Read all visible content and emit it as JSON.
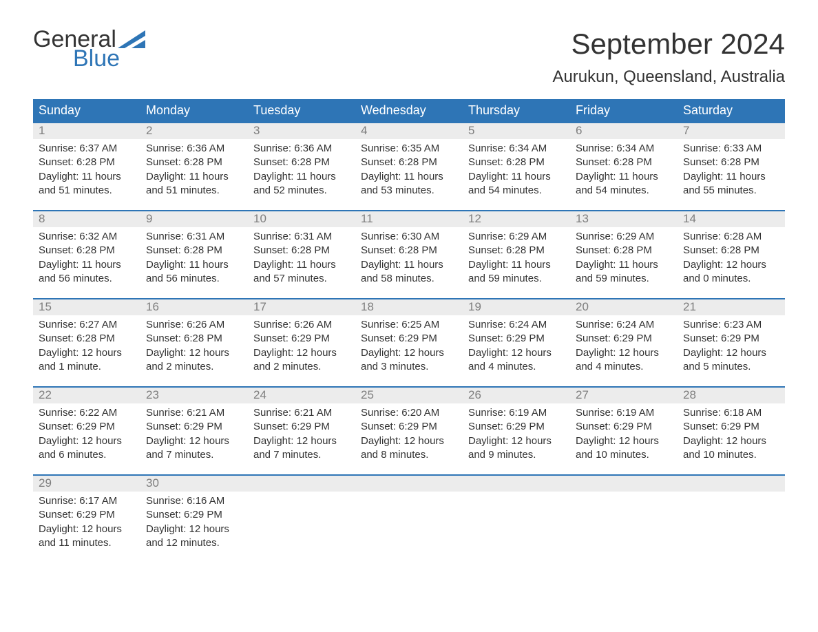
{
  "brand": {
    "part1": "General",
    "part2": "Blue",
    "text_color": "#333333",
    "accent_color": "#2e75b6"
  },
  "title": "September 2024",
  "location": "Aurukun, Queensland, Australia",
  "colors": {
    "header_bg": "#2e75b6",
    "header_text": "#ffffff",
    "daynum_bg": "#ececec",
    "daynum_text": "#7e7e7e",
    "body_text": "#333333",
    "week_border": "#2e75b6",
    "page_bg": "#ffffff"
  },
  "typography": {
    "month_title_fontsize": 42,
    "location_fontsize": 24,
    "day_header_fontsize": 18,
    "daynum_fontsize": 17,
    "detail_fontsize": 15
  },
  "day_headers": [
    "Sunday",
    "Monday",
    "Tuesday",
    "Wednesday",
    "Thursday",
    "Friday",
    "Saturday"
  ],
  "weeks": [
    [
      {
        "n": "1",
        "sr": "Sunrise: 6:37 AM",
        "ss": "Sunset: 6:28 PM",
        "d1": "Daylight: 11 hours",
        "d2": "and 51 minutes."
      },
      {
        "n": "2",
        "sr": "Sunrise: 6:36 AM",
        "ss": "Sunset: 6:28 PM",
        "d1": "Daylight: 11 hours",
        "d2": "and 51 minutes."
      },
      {
        "n": "3",
        "sr": "Sunrise: 6:36 AM",
        "ss": "Sunset: 6:28 PM",
        "d1": "Daylight: 11 hours",
        "d2": "and 52 minutes."
      },
      {
        "n": "4",
        "sr": "Sunrise: 6:35 AM",
        "ss": "Sunset: 6:28 PM",
        "d1": "Daylight: 11 hours",
        "d2": "and 53 minutes."
      },
      {
        "n": "5",
        "sr": "Sunrise: 6:34 AM",
        "ss": "Sunset: 6:28 PM",
        "d1": "Daylight: 11 hours",
        "d2": "and 54 minutes."
      },
      {
        "n": "6",
        "sr": "Sunrise: 6:34 AM",
        "ss": "Sunset: 6:28 PM",
        "d1": "Daylight: 11 hours",
        "d2": "and 54 minutes."
      },
      {
        "n": "7",
        "sr": "Sunrise: 6:33 AM",
        "ss": "Sunset: 6:28 PM",
        "d1": "Daylight: 11 hours",
        "d2": "and 55 minutes."
      }
    ],
    [
      {
        "n": "8",
        "sr": "Sunrise: 6:32 AM",
        "ss": "Sunset: 6:28 PM",
        "d1": "Daylight: 11 hours",
        "d2": "and 56 minutes."
      },
      {
        "n": "9",
        "sr": "Sunrise: 6:31 AM",
        "ss": "Sunset: 6:28 PM",
        "d1": "Daylight: 11 hours",
        "d2": "and 56 minutes."
      },
      {
        "n": "10",
        "sr": "Sunrise: 6:31 AM",
        "ss": "Sunset: 6:28 PM",
        "d1": "Daylight: 11 hours",
        "d2": "and 57 minutes."
      },
      {
        "n": "11",
        "sr": "Sunrise: 6:30 AM",
        "ss": "Sunset: 6:28 PM",
        "d1": "Daylight: 11 hours",
        "d2": "and 58 minutes."
      },
      {
        "n": "12",
        "sr": "Sunrise: 6:29 AM",
        "ss": "Sunset: 6:28 PM",
        "d1": "Daylight: 11 hours",
        "d2": "and 59 minutes."
      },
      {
        "n": "13",
        "sr": "Sunrise: 6:29 AM",
        "ss": "Sunset: 6:28 PM",
        "d1": "Daylight: 11 hours",
        "d2": "and 59 minutes."
      },
      {
        "n": "14",
        "sr": "Sunrise: 6:28 AM",
        "ss": "Sunset: 6:28 PM",
        "d1": "Daylight: 12 hours",
        "d2": "and 0 minutes."
      }
    ],
    [
      {
        "n": "15",
        "sr": "Sunrise: 6:27 AM",
        "ss": "Sunset: 6:28 PM",
        "d1": "Daylight: 12 hours",
        "d2": "and 1 minute."
      },
      {
        "n": "16",
        "sr": "Sunrise: 6:26 AM",
        "ss": "Sunset: 6:28 PM",
        "d1": "Daylight: 12 hours",
        "d2": "and 2 minutes."
      },
      {
        "n": "17",
        "sr": "Sunrise: 6:26 AM",
        "ss": "Sunset: 6:29 PM",
        "d1": "Daylight: 12 hours",
        "d2": "and 2 minutes."
      },
      {
        "n": "18",
        "sr": "Sunrise: 6:25 AM",
        "ss": "Sunset: 6:29 PM",
        "d1": "Daylight: 12 hours",
        "d2": "and 3 minutes."
      },
      {
        "n": "19",
        "sr": "Sunrise: 6:24 AM",
        "ss": "Sunset: 6:29 PM",
        "d1": "Daylight: 12 hours",
        "d2": "and 4 minutes."
      },
      {
        "n": "20",
        "sr": "Sunrise: 6:24 AM",
        "ss": "Sunset: 6:29 PM",
        "d1": "Daylight: 12 hours",
        "d2": "and 4 minutes."
      },
      {
        "n": "21",
        "sr": "Sunrise: 6:23 AM",
        "ss": "Sunset: 6:29 PM",
        "d1": "Daylight: 12 hours",
        "d2": "and 5 minutes."
      }
    ],
    [
      {
        "n": "22",
        "sr": "Sunrise: 6:22 AM",
        "ss": "Sunset: 6:29 PM",
        "d1": "Daylight: 12 hours",
        "d2": "and 6 minutes."
      },
      {
        "n": "23",
        "sr": "Sunrise: 6:21 AM",
        "ss": "Sunset: 6:29 PM",
        "d1": "Daylight: 12 hours",
        "d2": "and 7 minutes."
      },
      {
        "n": "24",
        "sr": "Sunrise: 6:21 AM",
        "ss": "Sunset: 6:29 PM",
        "d1": "Daylight: 12 hours",
        "d2": "and 7 minutes."
      },
      {
        "n": "25",
        "sr": "Sunrise: 6:20 AM",
        "ss": "Sunset: 6:29 PM",
        "d1": "Daylight: 12 hours",
        "d2": "and 8 minutes."
      },
      {
        "n": "26",
        "sr": "Sunrise: 6:19 AM",
        "ss": "Sunset: 6:29 PM",
        "d1": "Daylight: 12 hours",
        "d2": "and 9 minutes."
      },
      {
        "n": "27",
        "sr": "Sunrise: 6:19 AM",
        "ss": "Sunset: 6:29 PM",
        "d1": "Daylight: 12 hours",
        "d2": "and 10 minutes."
      },
      {
        "n": "28",
        "sr": "Sunrise: 6:18 AM",
        "ss": "Sunset: 6:29 PM",
        "d1": "Daylight: 12 hours",
        "d2": "and 10 minutes."
      }
    ],
    [
      {
        "n": "29",
        "sr": "Sunrise: 6:17 AM",
        "ss": "Sunset: 6:29 PM",
        "d1": "Daylight: 12 hours",
        "d2": "and 11 minutes."
      },
      {
        "n": "30",
        "sr": "Sunrise: 6:16 AM",
        "ss": "Sunset: 6:29 PM",
        "d1": "Daylight: 12 hours",
        "d2": "and 12 minutes."
      },
      {
        "n": "",
        "sr": "",
        "ss": "",
        "d1": "",
        "d2": ""
      },
      {
        "n": "",
        "sr": "",
        "ss": "",
        "d1": "",
        "d2": ""
      },
      {
        "n": "",
        "sr": "",
        "ss": "",
        "d1": "",
        "d2": ""
      },
      {
        "n": "",
        "sr": "",
        "ss": "",
        "d1": "",
        "d2": ""
      },
      {
        "n": "",
        "sr": "",
        "ss": "",
        "d1": "",
        "d2": ""
      }
    ]
  ]
}
